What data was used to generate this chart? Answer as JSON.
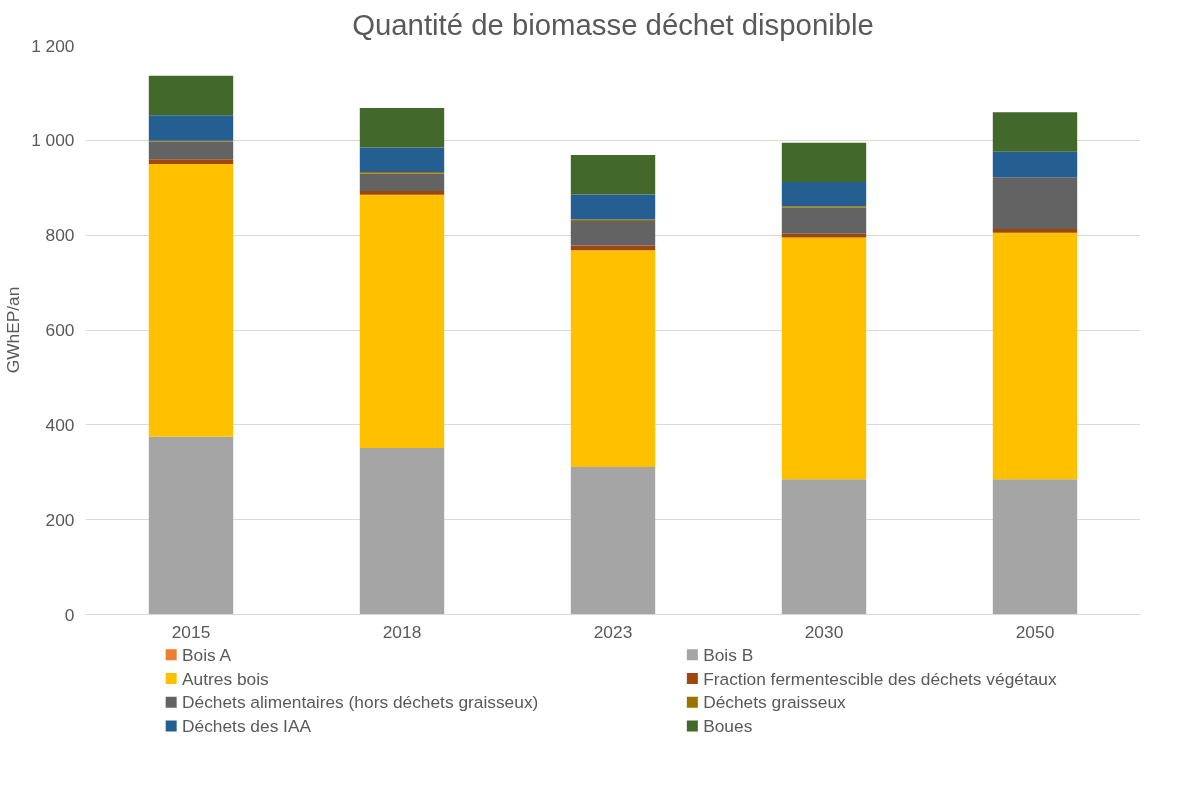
{
  "chart_data": {
    "type": "bar",
    "title": "Quantité de biomasse déchet disponible",
    "ylabel": "GWhEP/an",
    "categories": [
      "2015",
      "2018",
      "2023",
      "2030",
      "2050"
    ],
    "stacked": true,
    "ylim": [
      0,
      1200
    ],
    "yticks": [
      0,
      200,
      400,
      600,
      800,
      {
        "value": 1000,
        "label": "1 000"
      },
      {
        "value": 1200,
        "label": "1 200"
      }
    ],
    "grid": "y",
    "legend": "bottom",
    "series": [
      {
        "name": "Bois A",
        "color": "#ed7d31",
        "values": [
          0,
          0,
          0,
          0,
          0
        ]
      },
      {
        "name": "Bois B",
        "color": "#a5a5a5",
        "values": [
          375,
          351,
          311,
          285,
          285
        ]
      },
      {
        "name": "Autres bois",
        "color": "#ffc000",
        "values": [
          575,
          534,
          457,
          510,
          520
        ]
      },
      {
        "name": "Fraction fermentescible des déchets végétaux",
        "color": "#9e480e",
        "values": [
          10,
          8,
          10,
          8,
          8
        ]
      },
      {
        "name": "Déchets alimentaires (hors déchets graisseux)",
        "color": "#636363",
        "values": [
          37,
          37,
          52,
          55,
          109
        ]
      },
      {
        "name": "Déchets graisseux",
        "color": "#997300",
        "values": [
          2,
          3,
          3,
          3,
          null
        ]
      },
      {
        "name": "Déchets des IAA",
        "color": "#255e91",
        "values": [
          54,
          52,
          53,
          51,
          54
        ]
      },
      {
        "name": "Boues",
        "color": "#43682b",
        "values": [
          83,
          83,
          83,
          83,
          83
        ]
      }
    ]
  }
}
